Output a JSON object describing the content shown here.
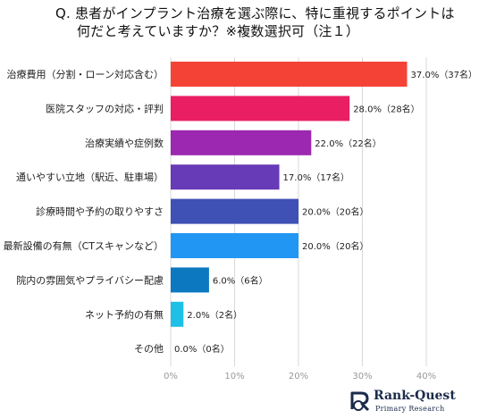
{
  "header": {
    "title_line1": "Q. 患者がインプラント治療を選ぶ際に、特に重視するポイントは",
    "title_line2": "何だと考えていますか？※複数選択可（注１）"
  },
  "colors": {
    "bars": [
      "#f44336",
      "#e91e63",
      "#9c27b0",
      "#673ab7",
      "#3f51b5",
      "#2196f3",
      "#0b78bf",
      "#1ec0e8",
      "#26c6da"
    ],
    "grid": "#d9d9d9",
    "tick": "#999999",
    "label": "#222222"
  },
  "chart_data": {
    "type": "bar",
    "orientation": "horizontal",
    "categories": [
      "治療費用（分割・ローン対応含む）",
      "医院スタッフの対応・評判",
      "治療実績や症例数",
      "通いやすい立地（駅近、駐車場）",
      "診療時間や予約の取りやすさ",
      "最新設備の有無（CTスキャンなど）",
      "院内の雰囲気やプライバシー配慮",
      "ネット予約の有無",
      "その他"
    ],
    "values": [
      37.0,
      28.0,
      22.0,
      17.0,
      20.0,
      20.0,
      6.0,
      2.0,
      0.0
    ],
    "data_labels": [
      "37.0%（37名）",
      "28.0%（28名）",
      "22.0%（22名）",
      "17.0%（17名）",
      "20.0%（20名）",
      "20.0%（20名）",
      "6.0%（6名）",
      "2.0%（2名）",
      "0.0%（0名）"
    ],
    "xlim": [
      0,
      40
    ],
    "xticks": [
      "0%",
      "10%",
      "20%",
      "30%",
      "40%"
    ],
    "grid": true,
    "legend": "none"
  },
  "logo": {
    "name": "Rank-Quest",
    "sub": "Primary Research"
  }
}
